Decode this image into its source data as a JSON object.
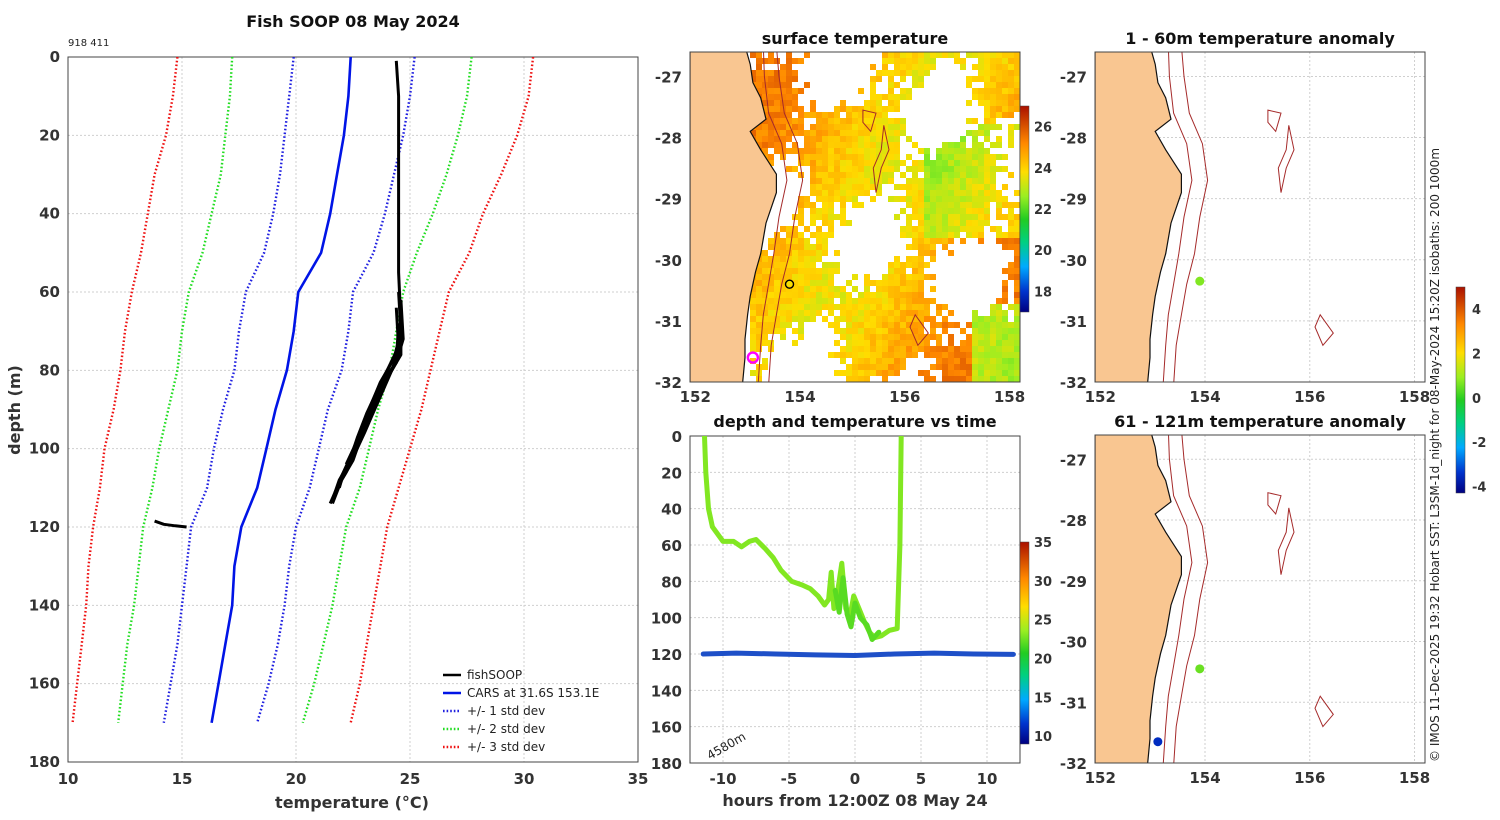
{
  "page": {
    "side_note": "© IMOS 11-Dec-2025 19:32 Hobart SST: L3SM-1d_night for 08-May-2024 15:20Z isobaths: 200  1000m"
  },
  "colors": {
    "land": "#f9c691",
    "fish": "#000000",
    "cars": "#0014e6",
    "sd1": "#2020e0",
    "sd2": "#22dd22",
    "sd3": "#ee1111",
    "isobath": "#a52a2a",
    "track_low": "#1e50c8"
  },
  "chart_data": [
    {
      "id": "profile",
      "type": "line",
      "title": "Fish SOOP 08 May 2024",
      "subtitle": "918 411",
      "xlabel": "temperature (°C)",
      "ylabel": "depth (m)",
      "xlim": [
        10,
        35
      ],
      "ylim": [
        180,
        0
      ],
      "xticks": [
        10,
        15,
        20,
        25,
        30,
        35
      ],
      "yticks": [
        0,
        20,
        40,
        60,
        80,
        100,
        120,
        140,
        160,
        180
      ],
      "legend": [
        "fishSOOP",
        "CARS at 31.6S 153.1E",
        "+/- 1 std dev",
        "+/- 2 std dev",
        "+/- 3 std dev"
      ],
      "legend_position": "bottom-right",
      "depths": [
        0,
        10,
        20,
        30,
        40,
        50,
        60,
        70,
        80,
        90,
        100,
        110,
        120,
        130,
        140,
        150,
        160,
        170
      ],
      "series": [
        {
          "name": "CARS mean",
          "style": "solid",
          "color": "cars",
          "values": [
            22.4,
            22.3,
            22.1,
            21.8,
            21.5,
            21.1,
            20.1,
            19.9,
            19.6,
            19.1,
            18.7,
            18.3,
            17.6,
            17.3,
            17.2,
            16.9,
            16.6,
            16.3
          ]
        },
        {
          "name": "+1 std",
          "style": "dotted",
          "color": "sd1",
          "values": [
            25.2,
            25.0,
            24.7,
            24.3,
            23.9,
            23.4,
            22.5,
            22.3,
            22.0,
            21.4,
            21.0,
            20.6,
            20.0,
            19.7,
            19.5,
            19.2,
            18.8,
            18.3
          ]
        },
        {
          "name": "-1 std",
          "style": "dotted",
          "color": "sd1",
          "values": [
            19.9,
            19.7,
            19.5,
            19.3,
            19.0,
            18.6,
            17.8,
            17.5,
            17.3,
            16.8,
            16.4,
            16.1,
            15.4,
            15.2,
            15.0,
            14.8,
            14.5,
            14.2
          ]
        },
        {
          "name": "+2 std",
          "style": "dotted",
          "color": "sd2",
          "values": [
            27.7,
            27.5,
            27.1,
            26.6,
            26.0,
            25.3,
            24.7,
            24.4,
            24.1,
            23.6,
            23.2,
            22.8,
            22.2,
            21.9,
            21.6,
            21.2,
            20.8,
            20.3
          ]
        },
        {
          "name": "-2 std",
          "style": "dotted",
          "color": "sd2",
          "values": [
            17.2,
            17.1,
            16.9,
            16.7,
            16.3,
            15.9,
            15.3,
            15.0,
            14.8,
            14.4,
            14.0,
            13.7,
            13.3,
            13.1,
            12.9,
            12.6,
            12.4,
            12.2
          ]
        },
        {
          "name": "+3 std",
          "style": "dotted",
          "color": "sd3",
          "values": [
            30.4,
            30.2,
            29.7,
            29.0,
            28.2,
            27.6,
            26.7,
            26.3,
            25.9,
            25.5,
            25.0,
            24.5,
            24.0,
            23.7,
            23.4,
            23.1,
            22.8,
            22.4
          ]
        },
        {
          "name": "-3 std",
          "style": "dotted",
          "color": "sd3",
          "values": [
            14.8,
            14.6,
            14.3,
            13.8,
            13.5,
            13.2,
            12.8,
            12.5,
            12.3,
            12.0,
            11.6,
            11.4,
            11.1,
            10.9,
            10.8,
            10.6,
            10.4,
            10.2
          ]
        }
      ],
      "fish_profiles": [
        [
          [
            24.4,
            1
          ],
          [
            24.5,
            10
          ],
          [
            24.5,
            30
          ],
          [
            24.5,
            55
          ],
          [
            24.6,
            68
          ],
          [
            24.5,
            75
          ],
          [
            24.2,
            80
          ],
          [
            23.9,
            84
          ],
          [
            23.6,
            88
          ],
          [
            23.3,
            92
          ],
          [
            23.0,
            96
          ],
          [
            22.6,
            101
          ],
          [
            22.2,
            106
          ],
          [
            21.8,
            110
          ],
          [
            21.5,
            114
          ]
        ],
        [
          [
            24.5,
            60
          ],
          [
            24.6,
            70
          ],
          [
            24.3,
            77
          ],
          [
            23.7,
            83
          ],
          [
            23.2,
            90
          ],
          [
            22.8,
            96
          ],
          [
            22.4,
            102
          ],
          [
            22.0,
            107
          ],
          [
            21.7,
            112
          ]
        ],
        [
          [
            24.6,
            62
          ],
          [
            24.7,
            72
          ],
          [
            24.4,
            78
          ],
          [
            23.9,
            82
          ],
          [
            23.4,
            88
          ],
          [
            22.9,
            95
          ],
          [
            22.5,
            101
          ],
          [
            22.1,
            106
          ],
          [
            21.9,
            110
          ]
        ],
        [
          [
            24.4,
            64
          ],
          [
            24.5,
            74
          ],
          [
            24.0,
            80
          ],
          [
            23.5,
            86
          ],
          [
            23.1,
            91
          ],
          [
            22.7,
            97
          ],
          [
            22.3,
            104
          ],
          [
            21.9,
            108
          ],
          [
            21.6,
            113
          ]
        ],
        [
          [
            24.6,
            66
          ],
          [
            24.6,
            76
          ],
          [
            24.1,
            81
          ],
          [
            23.8,
            85
          ],
          [
            23.5,
            89
          ],
          [
            23.0,
            93
          ],
          [
            22.6,
            99
          ],
          [
            22.2,
            104
          ]
        ],
        [
          [
            24.5,
            68
          ],
          [
            24.4,
            78
          ],
          [
            23.9,
            83
          ],
          [
            23.6,
            87
          ],
          [
            23.2,
            92
          ],
          [
            22.8,
            98
          ],
          [
            22.5,
            103
          ],
          [
            22.0,
            108
          ],
          [
            21.6,
            114
          ]
        ],
        [
          [
            13.8,
            118.5
          ],
          [
            14.2,
            119.3
          ],
          [
            14.7,
            119.7
          ],
          [
            15.2,
            120.0
          ]
        ]
      ]
    },
    {
      "id": "sst_map",
      "type": "heatmap",
      "title": "surface temperature",
      "xticks": [
        152,
        154,
        156,
        158
      ],
      "yticks": [
        -27,
        -28,
        -29,
        -30,
        -31,
        -32
      ],
      "xlim": [
        151.9,
        158.2
      ],
      "ylim": [
        -32,
        -26.6
      ],
      "colorbar": {
        "min": 17,
        "max": 27,
        "ticks": [
          18,
          20,
          22,
          24,
          26
        ]
      },
      "markers": [
        {
          "lon": 153.8,
          "lat": -30.4,
          "kind": "ring",
          "color": "#000000"
        },
        {
          "lon": 153.1,
          "lat": -31.6,
          "kind": "ring",
          "color": "#ff00ff"
        }
      ]
    },
    {
      "id": "depth_time",
      "type": "scatter",
      "title": "depth and temperature vs time",
      "xlabel": "hours from 12:00Z 08 May 24",
      "ylabel": "",
      "xlim": [
        -12.5,
        12.5
      ],
      "ylim": [
        180,
        0
      ],
      "xticks": [
        -10,
        -5,
        0,
        5,
        10
      ],
      "yticks": [
        0,
        20,
        40,
        60,
        80,
        100,
        120,
        140,
        160,
        180
      ],
      "annotation": "4580m",
      "colorbar": {
        "min": 9,
        "max": 35,
        "ticks": [
          10,
          15,
          20,
          25,
          30,
          35
        ]
      },
      "tracks": [
        {
          "name": "fish track",
          "temp": 23,
          "points": [
            [
              -11.4,
              0
            ],
            [
              -11.3,
              20
            ],
            [
              -11.1,
              40
            ],
            [
              -10.8,
              50
            ],
            [
              -10.0,
              58
            ],
            [
              -9.2,
              58
            ],
            [
              -8.6,
              61
            ],
            [
              -8.0,
              58
            ],
            [
              -7.5,
              57
            ],
            [
              -6.8,
              62
            ],
            [
              -6.2,
              67
            ],
            [
              -5.6,
              74
            ],
            [
              -4.8,
              80
            ],
            [
              -4.0,
              82
            ],
            [
              -3.4,
              84
            ],
            [
              -2.8,
              88
            ],
            [
              -2.3,
              93
            ],
            [
              -2.0,
              90
            ],
            [
              -1.8,
              75
            ],
            [
              -1.6,
              95
            ],
            [
              -1.3,
              85
            ],
            [
              -1.0,
              70
            ],
            [
              -0.7,
              95
            ],
            [
              -0.4,
              100
            ],
            [
              -0.1,
              88
            ],
            [
              0.3,
              95
            ],
            [
              0.7,
              102
            ],
            [
              1.1,
              108
            ],
            [
              1.5,
              111
            ],
            [
              2.0,
              110
            ],
            [
              2.6,
              107
            ],
            [
              3.2,
              106
            ],
            [
              3.4,
              60
            ],
            [
              3.5,
              0
            ]
          ]
        },
        {
          "name": "fish deep track",
          "temp": 22,
          "points": [
            [
              -1.5,
              85
            ],
            [
              -1.2,
              97
            ],
            [
              -0.9,
              78
            ],
            [
              -0.6,
              98
            ],
            [
              -0.3,
              105
            ],
            [
              0.0,
              92
            ],
            [
              0.4,
              100
            ],
            [
              0.9,
              104
            ],
            [
              1.3,
              112
            ],
            [
              1.8,
              108
            ]
          ]
        },
        {
          "name": "fish bottom track",
          "temp": 14,
          "points": [
            [
              -11.5,
              120
            ],
            [
              -9,
              119.5
            ],
            [
              -6,
              120
            ],
            [
              -3,
              120.5
            ],
            [
              0,
              120.8
            ],
            [
              3,
              120
            ],
            [
              6,
              119.5
            ],
            [
              9,
              120
            ],
            [
              12,
              120.2
            ]
          ]
        }
      ]
    },
    {
      "id": "anom_60",
      "type": "heatmap",
      "title": "1 - 60m temperature anomaly",
      "xticks": [
        152,
        154,
        156,
        158
      ],
      "yticks": [
        -27,
        -28,
        -29,
        -30,
        -31,
        -32
      ],
      "xlim": [
        151.9,
        158.2
      ],
      "ylim": [
        -32,
        -26.6
      ],
      "points": [
        {
          "lon": 153.9,
          "lat": -30.35,
          "value": 0.7
        }
      ]
    },
    {
      "id": "anom_121",
      "type": "heatmap",
      "title": "61 - 121m temperature anomaly",
      "xticks": [
        152,
        154,
        156,
        158
      ],
      "yticks": [
        -27,
        -28,
        -29,
        -30,
        -31,
        -32
      ],
      "xlim": [
        151.9,
        158.2
      ],
      "ylim": [
        -32,
        -26.6
      ],
      "points": [
        {
          "lon": 153.9,
          "lat": -30.45,
          "value": 0.5
        },
        {
          "lon": 153.1,
          "lat": -31.65,
          "value": -3.5
        }
      ],
      "colorbar": {
        "min": -4.3,
        "max": 5,
        "ticks": [
          -4,
          -2,
          0,
          2,
          4
        ]
      }
    }
  ]
}
